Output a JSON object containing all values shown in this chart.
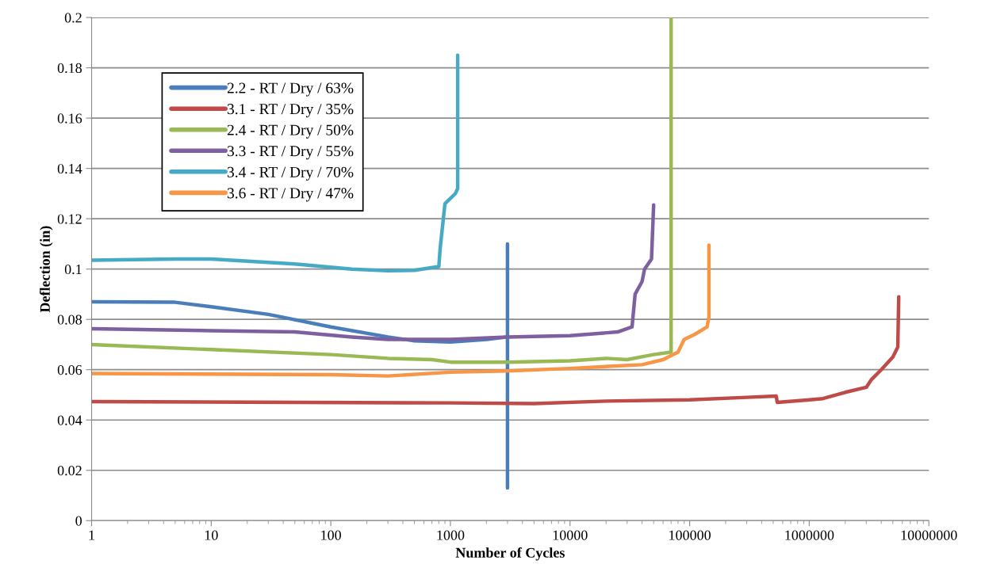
{
  "chart_data": {
    "type": "line",
    "xlabel": "Number of Cycles",
    "ylabel": "Deflection (in)",
    "log": "x",
    "xlim": [
      1,
      10000000
    ],
    "xticks": [
      1,
      10,
      100,
      1000,
      10000,
      100000,
      1000000,
      10000000
    ],
    "ylim": [
      0,
      0.2
    ],
    "yticks": [
      0,
      0.02,
      0.04,
      0.06,
      0.08,
      0.1,
      0.12,
      0.14,
      0.16,
      0.18,
      0.2
    ],
    "grid": "y",
    "legend": "top left",
    "marker": "none",
    "line_style": "solid",
    "series": [
      {
        "name": "2.2 - RT / Dry / 63%",
        "color": "#4a7ebb",
        "x": [
          1,
          5,
          10,
          30,
          100,
          300,
          500,
          1000,
          2000,
          3000,
          3000,
          3000
        ],
        "values": [
          0.087,
          0.0868,
          0.085,
          0.082,
          0.077,
          0.073,
          0.0715,
          0.071,
          0.072,
          0.073,
          0.11,
          0.013
        ]
      },
      {
        "name": "3.1 - RT / Dry / 35%",
        "color": "#be4b48",
        "x": [
          1,
          1000,
          5000,
          20000,
          100000,
          300000,
          530000,
          540000,
          1000000,
          1300000,
          2000000,
          3000000,
          3300000,
          4000000,
          5000000,
          5500000,
          5600000
        ],
        "values": [
          0.0473,
          0.0468,
          0.0465,
          0.0475,
          0.048,
          0.049,
          0.0495,
          0.047,
          0.048,
          0.0485,
          0.051,
          0.053,
          0.056,
          0.06,
          0.065,
          0.069,
          0.089
        ]
      },
      {
        "name": "2.4 - RT / Dry / 50%",
        "color": "#98b954",
        "x": [
          1,
          10,
          100,
          300,
          700,
          1000,
          3000,
          10000,
          20000,
          30000,
          50000,
          70000,
          70000
        ],
        "values": [
          0.07,
          0.068,
          0.066,
          0.0645,
          0.064,
          0.063,
          0.063,
          0.0635,
          0.0645,
          0.064,
          0.066,
          0.067,
          0.2
        ]
      },
      {
        "name": "3.3 - RT / Dry / 55%",
        "color": "#7d60a0",
        "x": [
          1,
          10,
          50,
          150,
          300,
          1000,
          3000,
          10000,
          25000,
          33000,
          35000,
          40000,
          42000,
          48000,
          50000
        ],
        "values": [
          0.0763,
          0.0755,
          0.075,
          0.073,
          0.072,
          0.072,
          0.073,
          0.0735,
          0.075,
          0.077,
          0.09,
          0.095,
          0.1,
          0.104,
          0.1255
        ]
      },
      {
        "name": "3.4 - RT / Dry / 70%",
        "color": "#46aac5",
        "x": [
          1,
          5,
          10,
          50,
          150,
          300,
          500,
          800,
          820,
          900,
          1100,
          1150,
          1150
        ],
        "values": [
          0.1035,
          0.104,
          0.104,
          0.102,
          0.1,
          0.0993,
          0.0995,
          0.101,
          0.108,
          0.126,
          0.13,
          0.132,
          0.185
        ]
      },
      {
        "name": "3.6 - RT / Dry / 47%",
        "color": "#f79646",
        "x": [
          1,
          100,
          300,
          1000,
          3000,
          10000,
          40000,
          60000,
          80000,
          90000,
          110000,
          140000,
          145000,
          145000
        ],
        "values": [
          0.0585,
          0.058,
          0.0575,
          0.059,
          0.0595,
          0.0605,
          0.062,
          0.064,
          0.067,
          0.072,
          0.074,
          0.077,
          0.081,
          0.1095
        ]
      }
    ]
  }
}
